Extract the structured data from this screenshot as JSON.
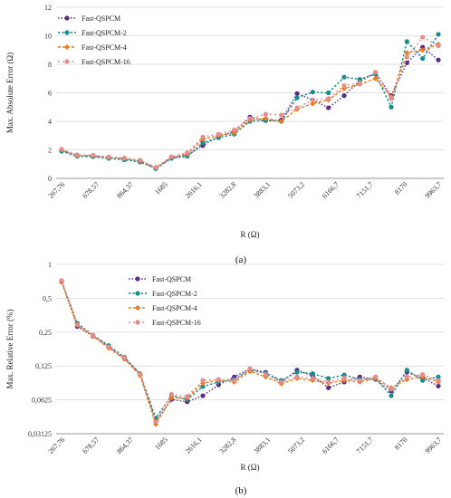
{
  "chart_data": [
    {
      "type": "line",
      "panel_label": "(a)",
      "xlabel": "R (Ω)",
      "ylabel": "Max. Absolute Error (Ω)",
      "ylim": [
        0,
        12
      ],
      "yticks": [
        "0",
        "2",
        "4",
        "6",
        "8",
        "10",
        "12"
      ],
      "yscale": "linear",
      "x_tick_labels": [
        "267,76",
        "678,57",
        "864,37",
        "1685",
        "2616,1",
        "3282,8",
        "3883,1",
        "5073,2",
        "6166,7",
        "7151,7",
        "8170",
        "9963,7"
      ],
      "grid": "horizontal",
      "legend_position": "top-left",
      "series": [
        {
          "name": "Fast-QSPCM",
          "color": "#5b2c83",
          "values": [
            1.95,
            1.62,
            1.57,
            1.45,
            1.35,
            1.2,
            0.72,
            1.45,
            1.62,
            2.3,
            2.95,
            3.3,
            4.3,
            4.05,
            4.1,
            5.95,
            5.5,
            4.95,
            5.8,
            6.85,
            7.4,
            5.8,
            8.1,
            9.2,
            8.3
          ]
        },
        {
          "name": "Fast-QSPCM-2",
          "color": "#1a8c8c",
          "values": [
            1.9,
            1.55,
            1.52,
            1.4,
            1.3,
            1.15,
            0.68,
            1.4,
            1.55,
            2.5,
            2.85,
            3.1,
            4.0,
            4.05,
            4.0,
            5.65,
            6.05,
            6.0,
            7.1,
            6.95,
            7.3,
            5.0,
            9.6,
            8.4,
            10.1
          ]
        },
        {
          "name": "Fast-QSPCM-4",
          "color": "#f07a1a",
          "values": [
            2.0,
            1.6,
            1.6,
            1.48,
            1.4,
            1.25,
            0.75,
            1.5,
            1.7,
            2.75,
            3.0,
            3.2,
            4.1,
            4.2,
            4.0,
            4.85,
            5.25,
            5.5,
            6.3,
            6.6,
            7.0,
            5.7,
            8.8,
            9.0,
            9.4
          ]
        },
        {
          "name": "Fast-QSPCM-16",
          "color": "#e58c8c",
          "values": [
            2.05,
            1.65,
            1.62,
            1.5,
            1.42,
            1.28,
            0.78,
            1.52,
            1.8,
            2.9,
            3.1,
            3.4,
            4.2,
            4.5,
            4.45,
            4.95,
            5.5,
            5.6,
            6.5,
            6.7,
            7.45,
            5.6,
            8.5,
            9.9,
            9.3
          ]
        }
      ]
    },
    {
      "type": "line",
      "panel_label": "(b)",
      "xlabel": "R (Ω)",
      "ylabel": "Max. Relative Error (%)",
      "yscale": "log2",
      "ylim": [
        0.03125,
        1
      ],
      "yticks": [
        "0,03125",
        "0,0625",
        "0,125",
        "0,25",
        "0,5",
        "1"
      ],
      "x_tick_labels": [
        "267,76",
        "678,57",
        "864,37",
        "1685",
        "2616,1",
        "3282,8",
        "3883,1",
        "5073,2",
        "6166,7",
        "7151,7",
        "8170",
        "9963,7"
      ],
      "grid": "horizontal",
      "legend_position": "top-center",
      "series": [
        {
          "name": "Fast-QSPCM",
          "color": "#5b2c83",
          "values": [
            0.7,
            0.28,
            0.23,
            0.185,
            0.145,
            0.105,
            0.04,
            0.063,
            0.06,
            0.068,
            0.085,
            0.1,
            0.118,
            0.11,
            0.09,
            0.115,
            0.102,
            0.08,
            0.09,
            0.1,
            0.095,
            0.075,
            0.11,
            0.098,
            0.083
          ]
        },
        {
          "name": "Fast-QSPCM-2",
          "color": "#1a8c8c",
          "values": [
            0.71,
            0.3,
            0.235,
            0.19,
            0.15,
            0.107,
            0.043,
            0.068,
            0.063,
            0.082,
            0.09,
            0.095,
            0.115,
            0.108,
            0.093,
            0.11,
            0.107,
            0.097,
            0.104,
            0.095,
            0.096,
            0.068,
            0.115,
            0.093,
            0.1
          ]
        },
        {
          "name": "Fast-QSPCM-4",
          "color": "#f07a1a",
          "values": [
            0.7,
            0.29,
            0.23,
            0.18,
            0.145,
            0.103,
            0.038,
            0.065,
            0.065,
            0.088,
            0.093,
            0.09,
            0.112,
            0.1,
            0.087,
            0.097,
            0.093,
            0.088,
            0.093,
            0.09,
            0.097,
            0.08,
            0.095,
            0.1,
            0.09
          ]
        },
        {
          "name": "Fast-QSPCM-16",
          "color": "#e58c8c",
          "values": [
            0.72,
            0.29,
            0.235,
            0.185,
            0.148,
            0.106,
            0.04,
            0.07,
            0.067,
            0.093,
            0.095,
            0.093,
            0.118,
            0.105,
            0.09,
            0.1,
            0.097,
            0.09,
            0.098,
            0.093,
            0.1,
            0.078,
            0.1,
            0.105,
            0.093
          ]
        }
      ]
    }
  ]
}
